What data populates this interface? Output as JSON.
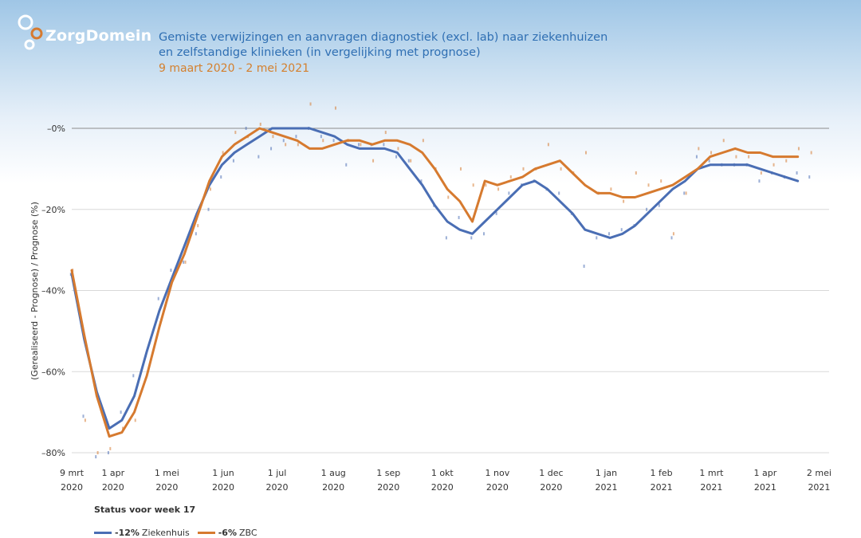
{
  "header": {
    "logo_text": "ZorgDomein",
    "title_line1": "Gemiste verwijzingen en aanvragen diagnostiek (excl. lab) naar ziekenhuizen",
    "title_line2": "en zelfstandige klinieken (in vergelijking met prognose)",
    "date_range": "9 maart 2020 - 2 mei 2021"
  },
  "status_label": "Status voor week 17",
  "legend": [
    {
      "value": "-12%",
      "name": "Ziekenhuis",
      "color": "#4a6eb4"
    },
    {
      "value": "-6%",
      "name": "ZBC",
      "color": "#d67a2f"
    }
  ],
  "chart_data": {
    "type": "line",
    "ylabel": "(Gerealiseerd - Prognose) / Prognose (%)",
    "ylim": [
      -80,
      0
    ],
    "yticks": [
      0,
      -20,
      -40,
      -60,
      -80
    ],
    "ytick_labels": [
      "–0%",
      "–20%",
      "–40%",
      "–60%",
      "–80%"
    ],
    "x_unit": "weeks since 9 mrt 2020",
    "xlim": [
      0,
      60.5
    ],
    "xticks": [
      {
        "x": 0,
        "l1": "9 mrt",
        "l2": "2020"
      },
      {
        "x": 3.3,
        "l1": "1 apr",
        "l2": "2020"
      },
      {
        "x": 7.6,
        "l1": "1 mei",
        "l2": "2020"
      },
      {
        "x": 12.1,
        "l1": "1 jun",
        "l2": "2020"
      },
      {
        "x": 16.4,
        "l1": "1 jul",
        "l2": "2020"
      },
      {
        "x": 20.9,
        "l1": "1 aug",
        "l2": "2020"
      },
      {
        "x": 25.3,
        "l1": "1 sep",
        "l2": "2020"
      },
      {
        "x": 29.6,
        "l1": "1 okt",
        "l2": "2020"
      },
      {
        "x": 34.0,
        "l1": "1 nov",
        "l2": "2020"
      },
      {
        "x": 38.3,
        "l1": "1 dec",
        "l2": "2020"
      },
      {
        "x": 42.7,
        "l1": "1 jan",
        "l2": "2021"
      },
      {
        "x": 47.1,
        "l1": "1 feb",
        "l2": "2021"
      },
      {
        "x": 51.1,
        "l1": "1 mrt",
        "l2": "2021"
      },
      {
        "x": 55.4,
        "l1": "1 apr",
        "l2": "2021"
      },
      {
        "x": 59.7,
        "l1": "2 mei",
        "l2": "2021"
      }
    ],
    "series": [
      {
        "name": "Ziekenhuis",
        "color": "#4a6eb4",
        "trend": [
          -36,
          -52,
          -65,
          -74,
          -72,
          -66,
          -55,
          -45,
          -37,
          -29,
          -21,
          -14,
          -9,
          -6,
          -4,
          -2,
          0,
          0,
          0,
          0,
          -1,
          -2,
          -4,
          -5,
          -5,
          -5,
          -6,
          -10,
          -14,
          -19,
          -23,
          -25,
          -26,
          -23,
          -20,
          -17,
          -14,
          -13,
          -15,
          -18,
          -21,
          -25,
          -26,
          -27,
          -26,
          -24,
          -21,
          -18,
          -15,
          -13,
          -10,
          -9,
          -9,
          -9,
          -9,
          -10,
          -11,
          -12,
          -13
        ],
        "points": [
          -36,
          -71,
          -81,
          -80,
          -70,
          -61,
          -56,
          -42,
          -35,
          -33,
          -26,
          -20,
          -12,
          -8,
          0,
          -7,
          -5,
          -3,
          -2,
          0,
          -2,
          -3,
          -9,
          -4,
          -4,
          -4,
          -7,
          -8,
          -13,
          -19,
          -27,
          -22,
          -27,
          -26,
          -21,
          -16,
          -14,
          -13,
          -15,
          -16,
          -21,
          -34,
          -27,
          -26,
          -25,
          -24,
          -20,
          -19,
          -27,
          -16,
          -7,
          -8,
          -9,
          -9,
          -9,
          -13,
          -11,
          -12,
          -11,
          -12
        ]
      },
      {
        "name": "ZBC",
        "color": "#d67a2f",
        "trend": [
          -35,
          -51,
          -66,
          -76,
          -75,
          -70,
          -61,
          -49,
          -38,
          -31,
          -22,
          -13,
          -7,
          -4,
          -2,
          0,
          -1,
          -2,
          -3,
          -5,
          -5,
          -4,
          -3,
          -3,
          -4,
          -3,
          -3,
          -4,
          -6,
          -10,
          -15,
          -18,
          -23,
          -13,
          -14,
          -13,
          -12,
          -10,
          -9,
          -8,
          -11,
          -14,
          -16,
          -16,
          -17,
          -17,
          -16,
          -15,
          -14,
          -12,
          -10,
          -7,
          -6,
          -5,
          -6,
          -6,
          -7,
          -7,
          -7
        ],
        "points": [
          -35,
          -72,
          -80,
          -79,
          -74,
          -72,
          -60,
          -48,
          -37,
          -33,
          -24,
          -15,
          -6,
          -1,
          -2,
          1,
          -2,
          -4,
          -4,
          6,
          -3,
          5,
          -3,
          -4,
          -8,
          -1,
          -5,
          -8,
          -3,
          -10,
          -17,
          -10,
          -14,
          -14,
          -15,
          -12,
          -10,
          -10,
          -4,
          -10,
          -11,
          -6,
          -16,
          -15,
          -18,
          -11,
          -14,
          -13,
          -26,
          -16,
          -5,
          -6,
          -3,
          -7,
          -7,
          -11,
          -9,
          -8,
          -5,
          -6
        ]
      }
    ]
  }
}
